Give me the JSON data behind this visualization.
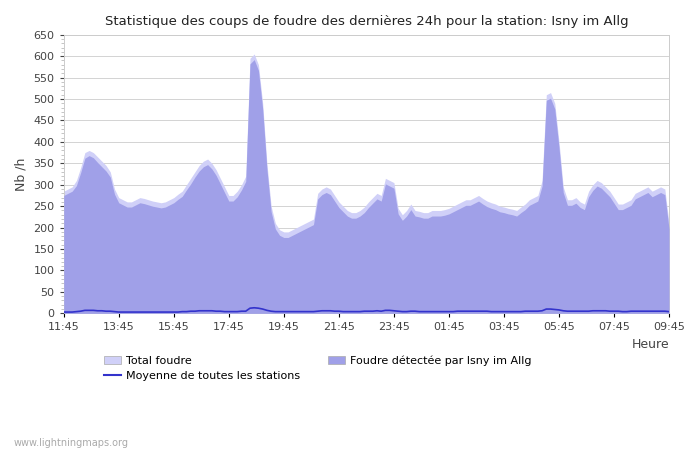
{
  "title": "Statistique des coups de foudre des dernières 24h pour la station: Isny im Allg",
  "xlabel": "Heure",
  "ylabel": "Nb /h",
  "watermark": "www.lightningmaps.org",
  "ylim": [
    0,
    650
  ],
  "yticks": [
    0,
    50,
    100,
    150,
    200,
    250,
    300,
    350,
    400,
    450,
    500,
    550,
    600,
    650
  ],
  "xtick_labels": [
    "11:45",
    "13:45",
    "15:45",
    "17:45",
    "19:45",
    "21:45",
    "23:45",
    "01:45",
    "03:45",
    "05:45",
    "07:45",
    "09:45"
  ],
  "legend_labels": [
    "Total foudre",
    "Foudre détectée par Isny im Allg",
    "Moyenne de toutes les stations"
  ],
  "total_color": "#d0d0f8",
  "detected_color": "#a0a0e8",
  "mean_color": "#3333cc",
  "total_vals": [
    285,
    290,
    295,
    310,
    340,
    375,
    380,
    375,
    365,
    355,
    345,
    330,
    290,
    270,
    265,
    260,
    260,
    265,
    270,
    268,
    265,
    262,
    260,
    258,
    260,
    265,
    270,
    278,
    285,
    300,
    315,
    330,
    345,
    355,
    360,
    350,
    335,
    315,
    295,
    275,
    275,
    285,
    300,
    320,
    595,
    605,
    580,
    490,
    350,
    250,
    210,
    195,
    190,
    190,
    195,
    200,
    205,
    210,
    215,
    220,
    280,
    290,
    295,
    290,
    275,
    260,
    250,
    240,
    235,
    235,
    240,
    248,
    260,
    270,
    280,
    275,
    315,
    310,
    305,
    245,
    230,
    240,
    255,
    240,
    238,
    235,
    235,
    240,
    240,
    240,
    242,
    245,
    250,
    255,
    260,
    265,
    265,
    270,
    275,
    268,
    262,
    258,
    255,
    250,
    248,
    245,
    243,
    240,
    248,
    255,
    265,
    270,
    275,
    310,
    510,
    515,
    490,
    400,
    295,
    265,
    265,
    270,
    260,
    255,
    285,
    300,
    310,
    305,
    295,
    285,
    270,
    255,
    255,
    260,
    265,
    280,
    285,
    290,
    295,
    285,
    290,
    295,
    290,
    210
  ],
  "detected_vals": [
    275,
    280,
    285,
    298,
    328,
    362,
    368,
    363,
    352,
    342,
    332,
    318,
    278,
    258,
    253,
    248,
    248,
    253,
    258,
    256,
    253,
    250,
    248,
    246,
    248,
    253,
    258,
    266,
    273,
    288,
    302,
    318,
    332,
    342,
    347,
    337,
    322,
    302,
    282,
    262,
    262,
    272,
    288,
    308,
    582,
    592,
    567,
    477,
    337,
    237,
    197,
    182,
    177,
    177,
    182,
    187,
    192,
    197,
    202,
    207,
    267,
    277,
    282,
    277,
    262,
    247,
    237,
    227,
    222,
    222,
    227,
    235,
    247,
    257,
    267,
    262,
    302,
    297,
    292,
    232,
    217,
    227,
    242,
    227,
    225,
    222,
    222,
    227,
    227,
    227,
    229,
    232,
    237,
    242,
    247,
    252,
    252,
    257,
    262,
    255,
    249,
    245,
    242,
    237,
    235,
    232,
    230,
    227,
    235,
    242,
    252,
    257,
    262,
    297,
    497,
    502,
    477,
    387,
    282,
    252,
    252,
    257,
    247,
    242,
    272,
    287,
    297,
    292,
    282,
    272,
    257,
    242,
    242,
    247,
    252,
    267,
    272,
    277,
    282,
    272,
    277,
    282,
    277,
    197
  ],
  "mean_vals": [
    3,
    3,
    3,
    4,
    5,
    7,
    7,
    7,
    6,
    6,
    5,
    5,
    4,
    3,
    3,
    3,
    3,
    3,
    3,
    3,
    3,
    3,
    3,
    3,
    3,
    3,
    3,
    3,
    4,
    4,
    5,
    5,
    6,
    6,
    6,
    6,
    5,
    5,
    4,
    4,
    4,
    4,
    5,
    5,
    12,
    13,
    12,
    10,
    7,
    5,
    4,
    4,
    4,
    4,
    4,
    4,
    4,
    4,
    4,
    4,
    5,
    6,
    6,
    6,
    5,
    5,
    4,
    4,
    4,
    4,
    4,
    5,
    5,
    5,
    6,
    5,
    7,
    7,
    6,
    5,
    4,
    4,
    5,
    5,
    4,
    4,
    4,
    4,
    4,
    4,
    4,
    4,
    4,
    5,
    5,
    5,
    5,
    5,
    5,
    5,
    5,
    4,
    4,
    4,
    4,
    4,
    4,
    4,
    4,
    5,
    5,
    5,
    5,
    6,
    10,
    10,
    9,
    8,
    6,
    5,
    5,
    5,
    5,
    5,
    5,
    6,
    6,
    6,
    6,
    5,
    5,
    5,
    4,
    4,
    5,
    5,
    5,
    5,
    5,
    5,
    5,
    5,
    5,
    4
  ]
}
